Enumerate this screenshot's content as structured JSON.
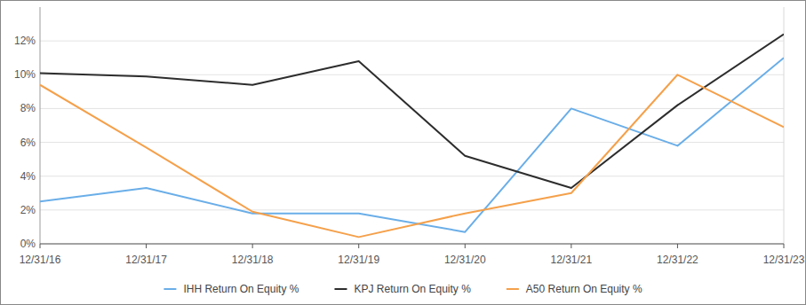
{
  "chart_data": {
    "type": "line",
    "categories": [
      "12/31/16",
      "12/31/17",
      "12/31/18",
      "12/31/19",
      "12/31/20",
      "12/31/21",
      "12/31/22",
      "12/31/23"
    ],
    "series": [
      {
        "name": "IHH Return On Equity %",
        "color": "#6aaee8",
        "values": [
          2.5,
          3.3,
          1.8,
          1.8,
          0.7,
          8.0,
          5.8,
          11.0
        ]
      },
      {
        "name": "KPJ Return On Equity %",
        "color": "#2d2d2d",
        "values": [
          10.1,
          9.9,
          9.4,
          10.8,
          5.2,
          3.3,
          8.2,
          12.4
        ]
      },
      {
        "name": "A50 Return On Equity %",
        "color": "#f5a04a",
        "values": [
          9.4,
          5.7,
          1.9,
          0.4,
          1.8,
          3.0,
          10.0,
          6.9
        ]
      }
    ],
    "ylim": [
      0,
      14
    ],
    "yticks": [
      {
        "value": 0,
        "label": "0%"
      },
      {
        "value": 2,
        "label": "2%"
      },
      {
        "value": 4,
        "label": "4%"
      },
      {
        "value": 6,
        "label": "6%"
      },
      {
        "value": 8,
        "label": "8%"
      },
      {
        "value": 10,
        "label": "10%"
      },
      {
        "value": 12,
        "label": "12%"
      }
    ],
    "grid": true,
    "legend": "bottom"
  }
}
